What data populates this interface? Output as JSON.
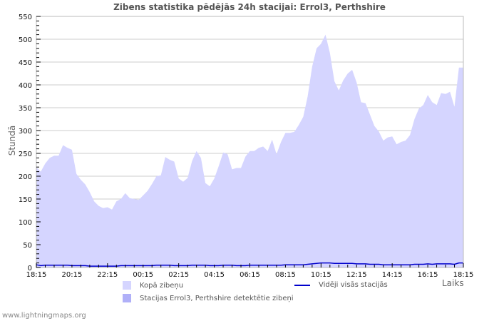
{
  "chart_data": {
    "type": "area",
    "title": "Zibens statistika pēdējās 24h stacijai: Errol3, Perthshire",
    "xlabel": "Laiks",
    "ylabel": "Stundā",
    "ylim": [
      0,
      550
    ],
    "yticks": [
      0,
      50,
      100,
      150,
      200,
      250,
      300,
      350,
      400,
      450,
      500,
      550
    ],
    "xtick_labels": [
      "18:15",
      "20:15",
      "22:15",
      "00:15",
      "02:15",
      "04:15",
      "06:15",
      "08:15",
      "10:15",
      "12:15",
      "14:15",
      "16:15",
      "18:15"
    ],
    "grid": true,
    "legend_position": "bottom",
    "series": [
      {
        "name": "Kopā zibeņu",
        "color": "#d5d5ff",
        "type": "area",
        "values": [
          220,
          210,
          228,
          240,
          245,
          245,
          268,
          262,
          258,
          205,
          192,
          182,
          165,
          145,
          135,
          130,
          132,
          127,
          145,
          150,
          163,
          152,
          150,
          148,
          158,
          168,
          183,
          200,
          202,
          242,
          236,
          232,
          195,
          188,
          196,
          233,
          255,
          240,
          185,
          178,
          195,
          222,
          252,
          248,
          215,
          218,
          218,
          243,
          255,
          255,
          262,
          265,
          255,
          280,
          248,
          275,
          295,
          295,
          297,
          312,
          330,
          375,
          440,
          480,
          490,
          510,
          470,
          408,
          388,
          410,
          425,
          433,
          405,
          362,
          360,
          335,
          310,
          298,
          278,
          285,
          287,
          270,
          275,
          278,
          290,
          325,
          348,
          356,
          378,
          362,
          356,
          382,
          380,
          385,
          352,
          438,
          438
        ],
        "x_start": "18:15",
        "step_minutes": 15
      },
      {
        "name": "Stacijas Errol3, Perthshire detektētie zibeņi",
        "color": "#b0b0f8",
        "type": "area",
        "values": []
      },
      {
        "name": "Vidēji visās stacijās",
        "color": "#0000cc",
        "type": "line",
        "values": [
          6,
          4,
          5,
          5,
          5,
          5,
          5,
          5,
          4,
          4,
          4,
          4,
          3,
          3,
          3,
          3,
          3,
          3,
          3,
          4,
          4,
          4,
          4,
          4,
          4,
          4,
          4,
          5,
          5,
          5,
          5,
          4,
          4,
          4,
          4,
          5,
          5,
          5,
          5,
          4,
          4,
          4,
          5,
          5,
          5,
          4,
          4,
          4,
          5,
          5,
          5,
          5,
          5,
          5,
          5,
          5,
          6,
          6,
          6,
          6,
          6,
          7,
          8,
          9,
          10,
          10,
          10,
          9,
          9,
          9,
          9,
          9,
          8,
          8,
          8,
          7,
          7,
          7,
          6,
          6,
          6,
          6,
          6,
          6,
          6,
          7,
          7,
          7,
          8,
          7,
          8,
          8,
          8,
          8,
          7,
          10,
          10
        ]
      }
    ]
  },
  "legend": {
    "items": [
      {
        "label": "Kopā zibeņu"
      },
      {
        "label": "Stacijas Errol3, Perthshire detektētie zibeņi"
      },
      {
        "label": "Vidēji visās stacijās"
      }
    ]
  },
  "footer": {
    "text": "www.lightningmaps.org"
  }
}
